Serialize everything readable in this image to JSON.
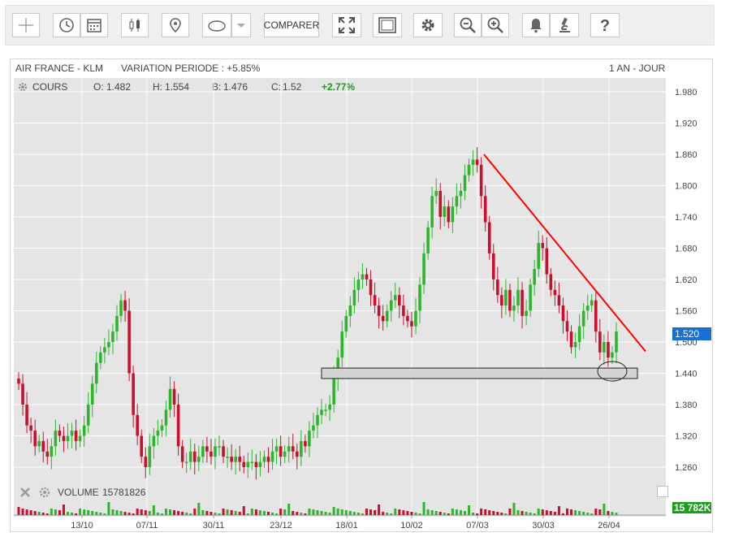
{
  "toolbar": {
    "compare_label": "COMPARER",
    "icons": [
      "crosshair-icon",
      "clock-history-icon",
      "calendar-icon",
      "candlestick-icon",
      "pin-icon",
      "ellipse-shape-icon",
      "dropdown-arrow-icon",
      "fullscreen-icon",
      "frame-icon",
      "gear-icon",
      "zoom-out-icon",
      "zoom-in-icon",
      "bell-icon",
      "microscope-icon",
      "help-icon"
    ]
  },
  "header": {
    "instrument": "AIR FRANCE - KLM",
    "variation": "VARIATION PERIODE : +5.85%",
    "period": "1 AN - JOUR",
    "cours_label": "COURS",
    "open_label": "O:",
    "open": "1.482",
    "high_label": "H:",
    "high": "1.554",
    "low_label": "B:",
    "low": "1.476",
    "close_label": "C:",
    "close": "1.52",
    "change": "+2.77%"
  },
  "volume": {
    "label": "VOLUME",
    "value": "15781826",
    "badge": "15 782K"
  },
  "price_badge": "1.520",
  "colors": {
    "up": "#2db52d",
    "down": "#c8102e",
    "trendline": "#ff0000",
    "price_badge": "#1a6fd6",
    "volume_badge": "#1e9c1e",
    "plot_bg": "#e5e5e5",
    "grid": "#ffffff"
  },
  "chart_data": {
    "type": "candlestick",
    "ylim": [
      1.22,
      2.0
    ],
    "yticks": [
      "1.980",
      "1.920",
      "1.860",
      "1.800",
      "1.740",
      "1.680",
      "1.620",
      "1.560",
      "1.500",
      "1.440",
      "1.380",
      "1.320",
      "1.260"
    ],
    "xticks": [
      "13/10",
      "07/11",
      "30/11",
      "23/12",
      "18/01",
      "10/02",
      "07/03",
      "30/03",
      "26/04"
    ],
    "last_price": 1.52,
    "support_zone": [
      1.43,
      1.45
    ],
    "trendline": {
      "from": [
        "07/03",
        1.86
      ],
      "to": [
        "26/04",
        1.49
      ]
    },
    "close_series": [
      1.42,
      1.38,
      1.34,
      1.33,
      1.3,
      1.31,
      1.29,
      1.28,
      1.3,
      1.33,
      1.32,
      1.31,
      1.32,
      1.33,
      1.31,
      1.32,
      1.34,
      1.38,
      1.42,
      1.46,
      1.48,
      1.49,
      1.5,
      1.52,
      1.55,
      1.58,
      1.56,
      1.44,
      1.36,
      1.32,
      1.28,
      1.26,
      1.3,
      1.32,
      1.33,
      1.34,
      1.37,
      1.41,
      1.38,
      1.3,
      1.27,
      1.27,
      1.29,
      1.27,
      1.28,
      1.3,
      1.29,
      1.28,
      1.3,
      1.3,
      1.28,
      1.28,
      1.27,
      1.28,
      1.27,
      1.26,
      1.27,
      1.27,
      1.26,
      1.27,
      1.28,
      1.27,
      1.29,
      1.3,
      1.28,
      1.29,
      1.3,
      1.29,
      1.28,
      1.31,
      1.3,
      1.33,
      1.34,
      1.36,
      1.37,
      1.37,
      1.38,
      1.43,
      1.47,
      1.52,
      1.55,
      1.57,
      1.6,
      1.62,
      1.63,
      1.62,
      1.59,
      1.57,
      1.55,
      1.54,
      1.56,
      1.58,
      1.59,
      1.57,
      1.55,
      1.54,
      1.53,
      1.56,
      1.61,
      1.67,
      1.72,
      1.78,
      1.79,
      1.74,
      1.76,
      1.73,
      1.76,
      1.78,
      1.79,
      1.82,
      1.84,
      1.85,
      1.84,
      1.78,
      1.73,
      1.67,
      1.62,
      1.59,
      1.57,
      1.6,
      1.56,
      1.57,
      1.6,
      1.55,
      1.56,
      1.61,
      1.64,
      1.69,
      1.68,
      1.63,
      1.6,
      1.59,
      1.57,
      1.54,
      1.52,
      1.49,
      1.5,
      1.53,
      1.56,
      1.57,
      1.58,
      1.52,
      1.48,
      1.5,
      1.47,
      1.48,
      1.52
    ]
  }
}
